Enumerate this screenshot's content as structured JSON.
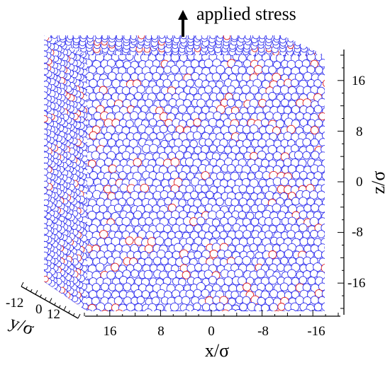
{
  "annotation": {
    "text": "applied stress"
  },
  "axes": {
    "x": {
      "title": "x/σ",
      "ticks": [
        "16",
        "8",
        "0",
        "-8",
        "-16"
      ]
    },
    "y": {
      "title": "y/σ",
      "ticks": [
        "-12",
        "0",
        "12"
      ]
    },
    "z": {
      "title": "z/σ",
      "ticks": [
        "16",
        "8",
        "0",
        "-8",
        "-16"
      ]
    }
  },
  "particles": {
    "majority_color": "#3333ee",
    "minority_color": "#e02020",
    "minority_fraction": 0.08,
    "fill_color": "#ffffff"
  }
}
